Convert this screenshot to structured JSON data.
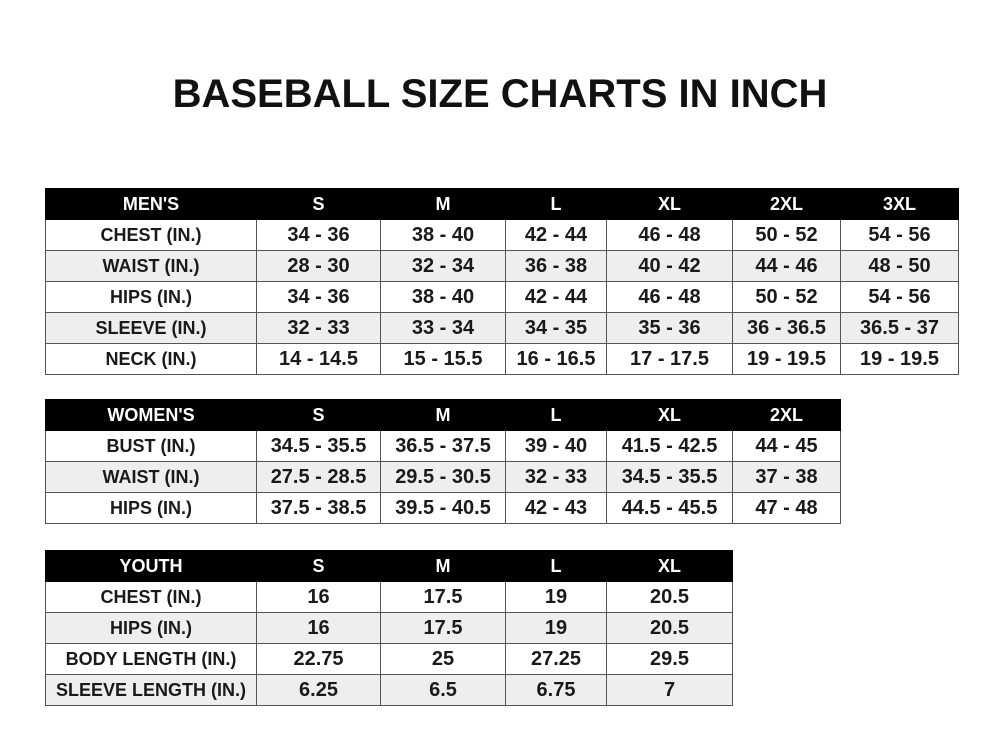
{
  "title": "BASEBALL SIZE CHARTS IN INCH",
  "tables": [
    {
      "id": "men",
      "headers": [
        "MEN'S",
        "S",
        "M",
        "L",
        "XL",
        "2XL",
        "3XL"
      ],
      "rows": [
        [
          "CHEST (IN.)",
          "34 - 36",
          "38 - 40",
          "42 - 44",
          "46 - 48",
          "50 - 52",
          "54 - 56"
        ],
        [
          "WAIST (IN.)",
          "28 - 30",
          "32 - 34",
          "36 - 38",
          "40 - 42",
          "44 - 46",
          "48 - 50"
        ],
        [
          "HIPS (IN.)",
          "34 - 36",
          "38 - 40",
          "42 - 44",
          "46 - 48",
          "50 - 52",
          "54 - 56"
        ],
        [
          "SLEEVE (IN.)",
          "32 - 33",
          "33 - 34",
          "34 - 35",
          "35 - 36",
          "36 - 36.5",
          "36.5 - 37"
        ],
        [
          "NECK (IN.)",
          "14 - 14.5",
          "15 - 15.5",
          "16 - 16.5",
          "17 - 17.5",
          "19 - 19.5",
          "19 - 19.5"
        ]
      ]
    },
    {
      "id": "women",
      "headers": [
        "WOMEN'S",
        "S",
        "M",
        "L",
        "XL",
        "2XL"
      ],
      "rows": [
        [
          "BUST (IN.)",
          "34.5 - 35.5",
          "36.5 - 37.5",
          "39 - 40",
          "41.5 - 42.5",
          "44 - 45"
        ],
        [
          "WAIST (IN.)",
          "27.5 - 28.5",
          "29.5 - 30.5",
          "32 - 33",
          "34.5 - 35.5",
          "37 - 38"
        ],
        [
          "HIPS (IN.)",
          "37.5 - 38.5",
          "39.5 - 40.5",
          "42 - 43",
          "44.5 - 45.5",
          "47 - 48"
        ]
      ]
    },
    {
      "id": "youth",
      "headers": [
        "YOUTH",
        "S",
        "M",
        "L",
        "XL"
      ],
      "rows": [
        [
          "CHEST (IN.)",
          "16",
          "17.5",
          "19",
          "20.5"
        ],
        [
          "HIPS (IN.)",
          "16",
          "17.5",
          "19",
          "20.5"
        ],
        [
          "BODY LENGTH (IN.)",
          "22.75",
          "25",
          "27.25",
          "29.5"
        ],
        [
          "SLEEVE LENGTH (IN.)",
          "6.25",
          "6.5",
          "6.75",
          "7"
        ]
      ]
    }
  ]
}
